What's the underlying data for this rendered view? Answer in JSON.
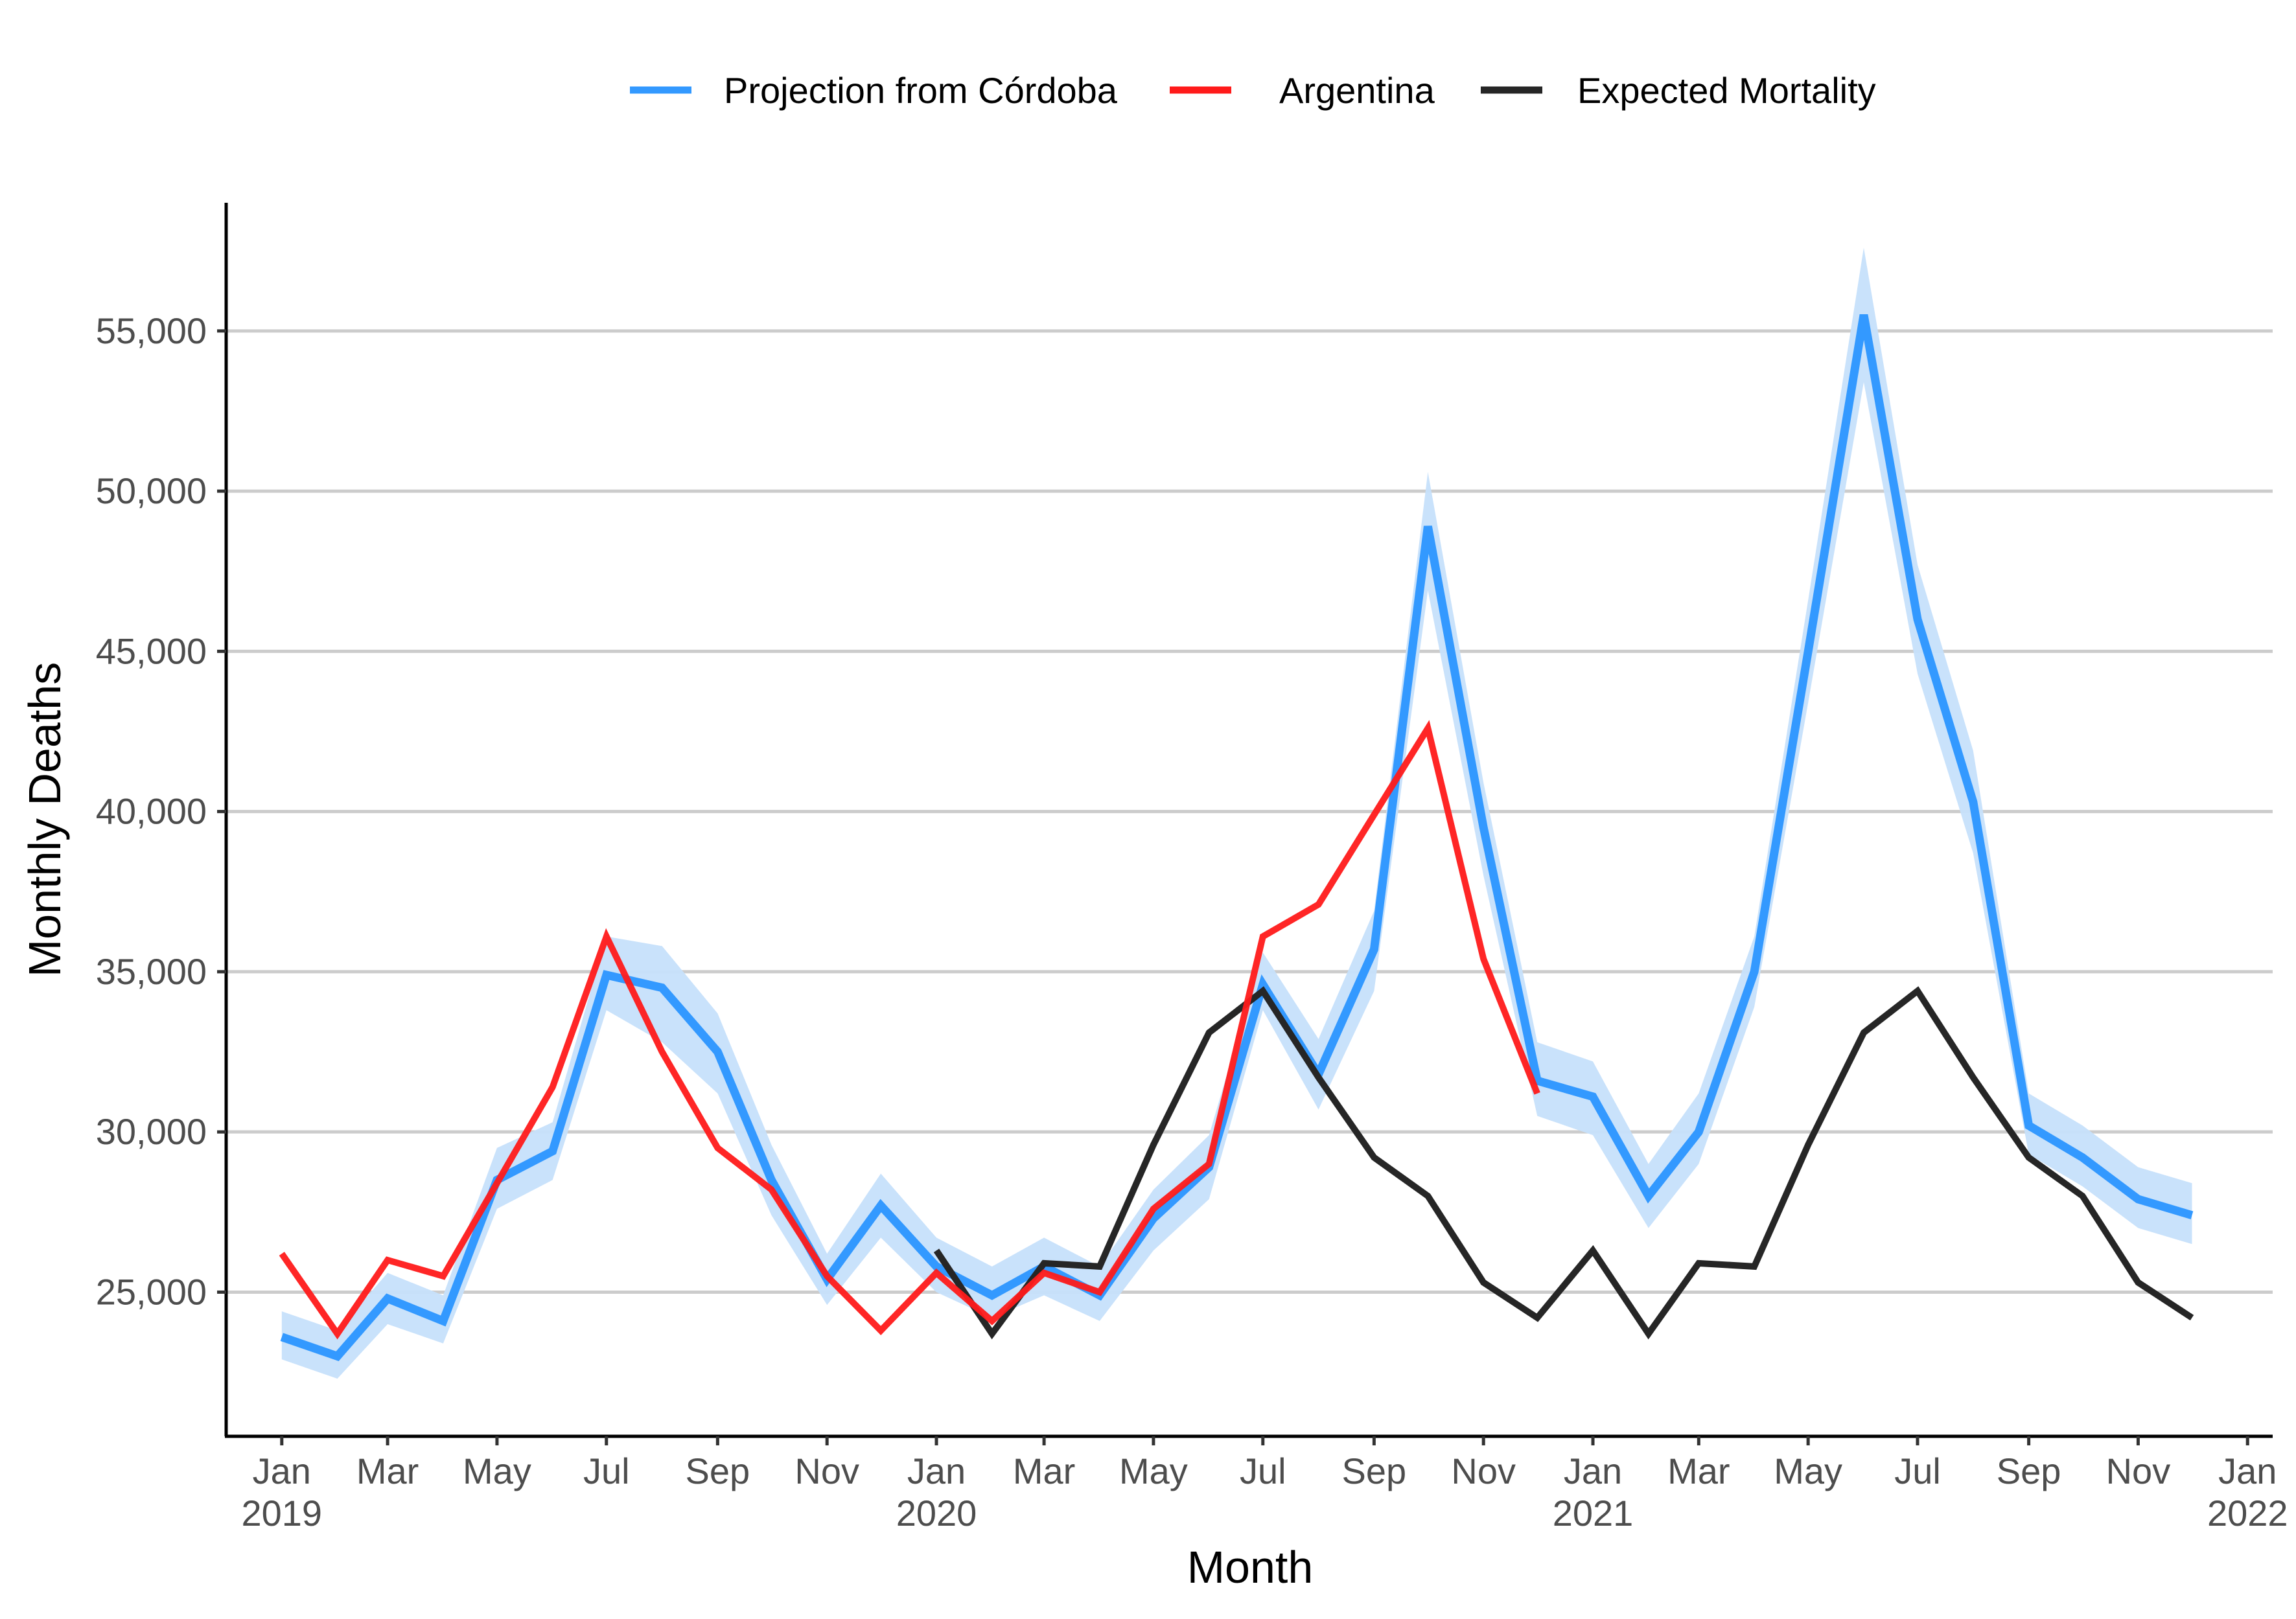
{
  "chart_data": {
    "type": "line",
    "xlabel": "Month",
    "ylabel": "Monthly Deaths",
    "xlim": [
      "2018-12-01",
      "2022-01-15"
    ],
    "ylim": [
      20500,
      59000
    ],
    "grid": "horizontal major",
    "legend_position": "top",
    "y_ticks": [
      {
        "value": 25000,
        "label": "25,000"
      },
      {
        "value": 30000,
        "label": "30,000"
      },
      {
        "value": 35000,
        "label": "35,000"
      },
      {
        "value": 40000,
        "label": "40,000"
      },
      {
        "value": 45000,
        "label": "45,000"
      },
      {
        "value": 50000,
        "label": "50,000"
      },
      {
        "value": 55000,
        "label": "55,000"
      }
    ],
    "x_ticks": [
      {
        "date": "2019-01-01",
        "label": "Jan",
        "year": "2019"
      },
      {
        "date": "2019-03-01",
        "label": "Mar",
        "year": ""
      },
      {
        "date": "2019-05-01",
        "label": "May",
        "year": ""
      },
      {
        "date": "2019-07-01",
        "label": "Jul",
        "year": ""
      },
      {
        "date": "2019-09-01",
        "label": "Sep",
        "year": ""
      },
      {
        "date": "2019-11-01",
        "label": "Nov",
        "year": ""
      },
      {
        "date": "2020-01-01",
        "label": "Jan",
        "year": "2020"
      },
      {
        "date": "2020-03-01",
        "label": "Mar",
        "year": ""
      },
      {
        "date": "2020-05-01",
        "label": "May",
        "year": ""
      },
      {
        "date": "2020-07-01",
        "label": "Jul",
        "year": ""
      },
      {
        "date": "2020-09-01",
        "label": "Sep",
        "year": ""
      },
      {
        "date": "2020-11-01",
        "label": "Nov",
        "year": ""
      },
      {
        "date": "2021-01-01",
        "label": "Jan",
        "year": "2021"
      },
      {
        "date": "2021-03-01",
        "label": "Mar",
        "year": ""
      },
      {
        "date": "2021-05-01",
        "label": "May",
        "year": ""
      },
      {
        "date": "2021-07-01",
        "label": "Jul",
        "year": ""
      },
      {
        "date": "2021-09-01",
        "label": "Sep",
        "year": ""
      },
      {
        "date": "2021-11-01",
        "label": "Nov",
        "year": ""
      },
      {
        "date": "2022-01-01",
        "label": "Jan",
        "year": "2022"
      }
    ],
    "series": [
      {
        "name": "Projection from Córdoba",
        "color": "#3399ff",
        "band_color": "#c6e0fb",
        "x": [
          "2019-01-01",
          "2019-02-01",
          "2019-03-01",
          "2019-04-01",
          "2019-05-01",
          "2019-06-01",
          "2019-07-01",
          "2019-08-01",
          "2019-09-01",
          "2019-10-01",
          "2019-11-01",
          "2019-12-01",
          "2020-01-01",
          "2020-02-01",
          "2020-03-01",
          "2020-04-01",
          "2020-05-01",
          "2020-06-01",
          "2020-07-01",
          "2020-08-01",
          "2020-09-01",
          "2020-10-01",
          "2020-11-01",
          "2020-12-01",
          "2021-01-01",
          "2021-02-01",
          "2021-03-01",
          "2021-04-01",
          "2021-05-01",
          "2021-06-01",
          "2021-07-01",
          "2021-08-01",
          "2021-09-01",
          "2021-10-01",
          "2021-11-01",
          "2021-12-01"
        ],
        "y": [
          23600,
          23000,
          24800,
          24100,
          28500,
          29400,
          34900,
          34500,
          32500,
          28500,
          25400,
          27700,
          25800,
          24900,
          25800,
          24900,
          27300,
          28900,
          34600,
          31800,
          35700,
          48900,
          39500,
          31600,
          31100,
          28000,
          30000,
          35000,
          45000,
          55500,
          46000,
          40300,
          30200,
          29200,
          27900,
          27400
        ],
        "lower": [
          22900,
          22300,
          24000,
          23400,
          27600,
          28500,
          33800,
          32800,
          31200,
          27400,
          24600,
          26700,
          25000,
          24200,
          24900,
          24100,
          26300,
          27900,
          33800,
          30700,
          34400,
          46900,
          38000,
          30500,
          29900,
          27000,
          29000,
          33900,
          43400,
          53400,
          44300,
          38700,
          29300,
          28300,
          27000,
          26500
        ],
        "upper": [
          24400,
          23800,
          25600,
          24900,
          29500,
          30300,
          36100,
          35800,
          33700,
          29600,
          26200,
          28700,
          26700,
          25800,
          26700,
          25800,
          28200,
          29900,
          35600,
          32900,
          36900,
          50600,
          40900,
          32800,
          32200,
          29000,
          31200,
          36100,
          46600,
          57600,
          47700,
          41900,
          31200,
          30200,
          28900,
          28400
        ]
      },
      {
        "name": "Argentina",
        "color": "#ff1a1a",
        "x": [
          "2019-01-01",
          "2019-02-01",
          "2019-03-01",
          "2019-04-01",
          "2019-05-01",
          "2019-06-01",
          "2019-07-01",
          "2019-08-01",
          "2019-09-01",
          "2019-10-01",
          "2019-11-01",
          "2019-12-01",
          "2020-01-01",
          "2020-02-01",
          "2020-03-01",
          "2020-04-01",
          "2020-05-01",
          "2020-06-01",
          "2020-07-01",
          "2020-08-01",
          "2020-09-01",
          "2020-10-01",
          "2020-11-01",
          "2020-12-01"
        ],
        "y": [
          26200,
          23700,
          26000,
          25500,
          28400,
          31400,
          36100,
          32500,
          29500,
          28200,
          25500,
          23800,
          25600,
          24100,
          25600,
          25000,
          27600,
          29000,
          36100,
          37100,
          39900,
          42600,
          35400,
          31200
        ]
      },
      {
        "name": "Expected Mortality",
        "color": "#262626",
        "x": [
          "2020-01-01",
          "2020-02-01",
          "2020-03-01",
          "2020-04-01",
          "2020-05-01",
          "2020-06-01",
          "2020-07-01",
          "2020-08-01",
          "2020-09-01",
          "2020-10-01",
          "2020-11-01",
          "2020-12-01",
          "2021-01-01",
          "2021-02-01",
          "2021-03-01",
          "2021-04-01",
          "2021-05-01",
          "2021-06-01",
          "2021-07-01",
          "2021-08-01",
          "2021-09-01",
          "2021-10-01",
          "2021-11-01",
          "2021-12-01"
        ],
        "y": [
          26300,
          23700,
          25900,
          25800,
          29600,
          33100,
          34400,
          31700,
          29200,
          28000,
          25300,
          24200,
          26300,
          23700,
          25900,
          25800,
          29600,
          33100,
          34400,
          31700,
          29200,
          28000,
          25300,
          24200
        ]
      }
    ]
  }
}
